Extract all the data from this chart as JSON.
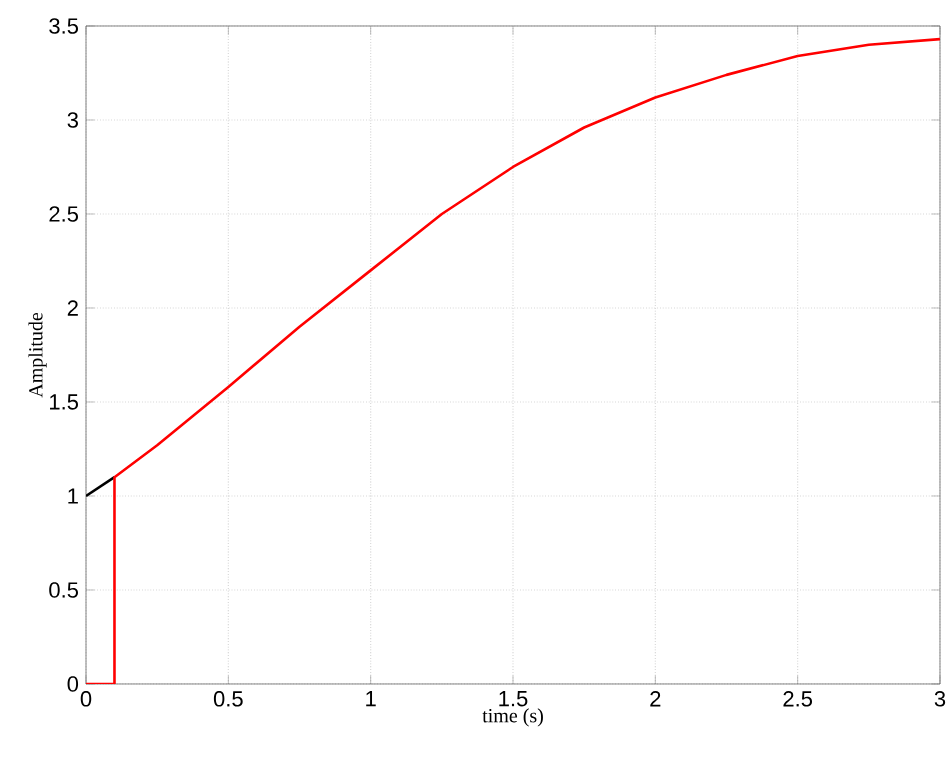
{
  "chart_data": {
    "type": "line",
    "xlabel": "time (s)",
    "ylabel": "Amplitude",
    "xlim": [
      0,
      3
    ],
    "ylim": [
      0,
      3.5
    ],
    "xticks": [
      0,
      0.5,
      1,
      1.5,
      2,
      2.5,
      3
    ],
    "yticks": [
      0,
      0.5,
      1,
      1.5,
      2,
      2.5,
      3,
      3.5
    ],
    "grid": true,
    "series": [
      {
        "color": "#000000",
        "x": [
          0,
          0.1
        ],
        "values": [
          1,
          1.1
        ]
      },
      {
        "color": "#ff0000",
        "x": [
          0,
          0.1,
          0.1,
          0.25,
          0.5,
          0.75,
          1.0,
          1.25,
          1.5,
          1.75,
          2.0,
          2.25,
          2.5,
          2.75,
          3.0
        ],
        "values": [
          0,
          0,
          1.1,
          1.27,
          1.58,
          1.9,
          2.2,
          2.5,
          2.75,
          2.96,
          3.12,
          3.24,
          3.34,
          3.4,
          3.43
        ]
      }
    ]
  }
}
